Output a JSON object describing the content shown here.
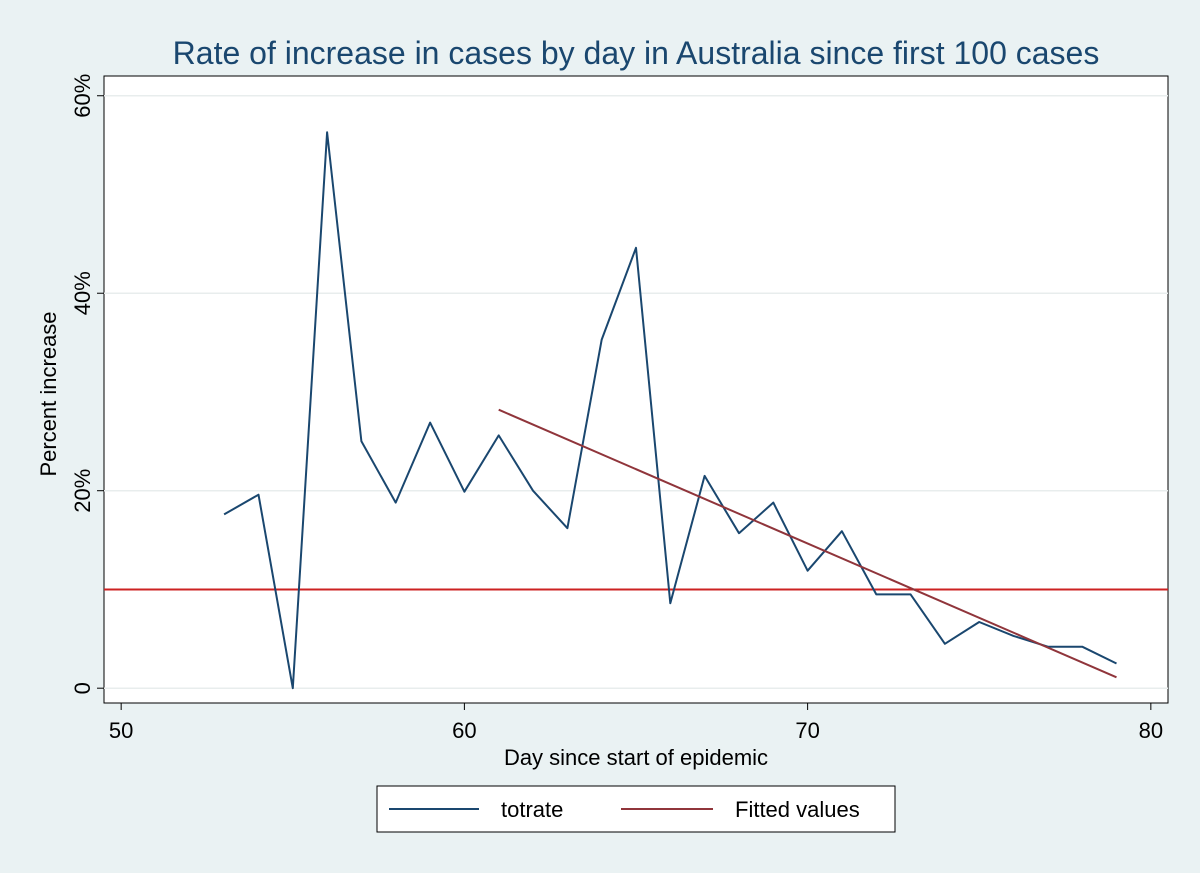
{
  "chart_data": {
    "type": "line",
    "title": "Rate of increase in cases by day in Australia since first 100 cases",
    "xlabel": "Day since start of epidemic",
    "ylabel": "Percent increase",
    "xlim": [
      49.5,
      80.5
    ],
    "ylim": [
      -1.5,
      62
    ],
    "x_ticks": [
      50,
      60,
      70,
      80
    ],
    "y_ticks": [
      0,
      20,
      40,
      60
    ],
    "y_tick_labels": [
      "0",
      "20%",
      "40%",
      "60%"
    ],
    "grid": "horizontal",
    "reference_line_y": 10,
    "reference_line_color": "#cc2222",
    "legend_position": "bottom",
    "series": [
      {
        "name": "totrate",
        "color": "#1a476f",
        "x": [
          53,
          54,
          55,
          56,
          57,
          58,
          59,
          60,
          61,
          62,
          63,
          64,
          65,
          66,
          67,
          68,
          69,
          70,
          71,
          72,
          73,
          74,
          75,
          76,
          77,
          78,
          79
        ],
        "values": [
          17.6,
          19.6,
          0,
          56.3,
          25.0,
          18.8,
          26.9,
          19.9,
          25.6,
          20.0,
          16.2,
          35.3,
          44.6,
          8.6,
          21.5,
          15.7,
          18.8,
          11.9,
          15.9,
          9.5,
          9.5,
          4.5,
          6.7,
          5.3,
          4.2,
          4.2,
          2.5
        ]
      },
      {
        "name": "Fitted values",
        "color": "#90353b",
        "x": [
          61,
          79
        ],
        "values": [
          28.2,
          1.1
        ]
      }
    ]
  }
}
